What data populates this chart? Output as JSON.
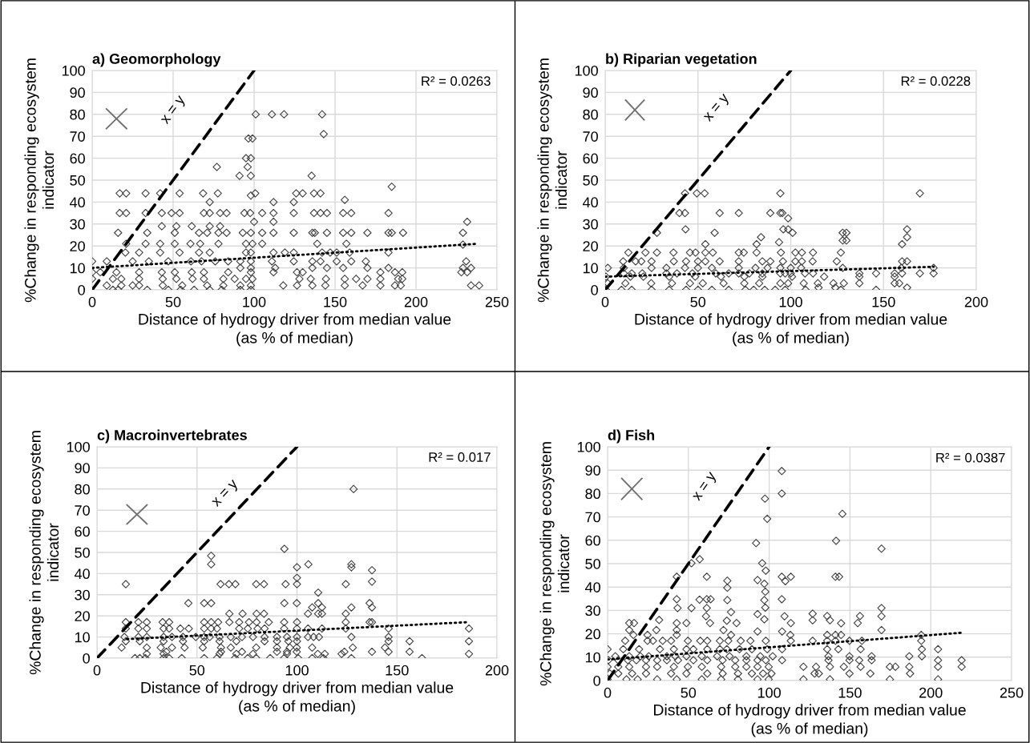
{
  "chart_data": [
    {
      "type": "scatter",
      "title": "a) Geomorphology",
      "xlabel": "Distance of hydrogy driver from median value\n(as % of median)",
      "ylabel": "%Change in responding ecosystem\nindicator",
      "xlim": [
        0,
        250
      ],
      "xticks": [
        0,
        50,
        100,
        150,
        200,
        250
      ],
      "ylim": [
        0,
        100
      ],
      "yticks": [
        0,
        10,
        20,
        30,
        40,
        50,
        60,
        70,
        80,
        90,
        100
      ],
      "grid": true,
      "annotations": [
        "x = y",
        "R² = 0.0263"
      ],
      "series": [
        {
          "marker": "diamond",
          "color": "#404040",
          "x": [
            101,
            111,
            118.5,
            142,
            143,
            96.5,
            99,
            95,
            98,
            77,
            96,
            91,
            98,
            135.5,
            185,
            17,
            21,
            33,
            42,
            54,
            68.5,
            77.6,
            100.7,
            126,
            130,
            137,
            141,
            156,
            98,
            17,
            21,
            33,
            43,
            49,
            54,
            69,
            72.6,
            79,
            83,
            94,
            97.6,
            105,
            112,
            124.5,
            137,
            141,
            145,
            155,
            160,
            183,
            72.6,
            112,
            124.5,
            231.6,
            100,
            112,
            43,
            52,
            61.5,
            72.6,
            79,
            16,
            34,
            51,
            66,
            71,
            78,
            83,
            93,
            98,
            105,
            112,
            124.5,
            136,
            137.5,
            145,
            155,
            160,
            170,
            183,
            185,
            192,
            229,
            21,
            33,
            42,
            51,
            60.7,
            66.7,
            78,
            95,
            99,
            105,
            139,
            157,
            229,
            20.5,
            29,
            42,
            54,
            66,
            72.6,
            95,
            98,
            112,
            119,
            124.5,
            142,
            147,
            151,
            159,
            183,
            0,
            9,
            25,
            35,
            47,
            61,
            67.5,
            76,
            84,
            91.5,
            98,
            111,
            124.5,
            136,
            141,
            151,
            160,
            169,
            231,
            91.5,
            98,
            113,
            136,
            145,
            155,
            170,
            183,
            229,
            234,
            0,
            5,
            15,
            29,
            43,
            51,
            61.5,
            69,
            84,
            98,
            112,
            126.5,
            130,
            178,
            187,
            191.5,
            228,
            231.6,
            0,
            12.8,
            18,
            29,
            43.6,
            52,
            62,
            69,
            81,
            88,
            95,
            99,
            128,
            135,
            144.4,
            156,
            163,
            170,
            178,
            189,
            191.5,
            9,
            18,
            25,
            29,
            43.6,
            55.6,
            71,
            81,
            91.5,
            98,
            118,
            126.5,
            136,
            144,
            156,
            167,
            178,
            187,
            190.6,
            234,
            239,
            12.8,
            16,
            34,
            47,
            54.7,
            63,
            72.6,
            80,
            91.5,
            98
          ],
          "values": [
            80,
            80,
            80,
            80,
            71,
            69,
            69,
            60,
            60,
            56,
            56,
            52,
            52,
            52,
            47,
            44,
            44,
            44,
            44,
            44,
            44,
            44,
            44,
            44,
            44,
            44,
            44,
            41,
            43,
            35,
            35,
            35,
            35,
            35,
            35,
            35,
            35,
            35,
            35,
            35,
            35,
            35,
            35,
            35,
            35,
            35,
            35,
            35,
            35,
            35,
            40,
            40,
            40,
            31,
            31,
            31,
            29,
            29,
            29,
            29,
            29,
            26,
            26,
            26,
            26,
            26,
            26,
            26,
            26,
            26,
            26,
            26,
            26,
            26,
            26,
            26,
            26,
            26,
            26,
            26,
            26,
            26,
            26,
            21,
            21,
            21,
            21,
            21,
            21,
            21,
            21,
            21,
            21,
            21,
            21,
            20.6,
            17,
            17,
            17,
            17,
            17,
            17,
            17,
            17,
            17,
            17,
            17,
            17,
            17,
            17,
            17,
            17,
            13,
            13,
            13,
            13,
            13,
            13,
            13,
            13,
            13,
            13,
            13,
            13,
            13,
            13,
            13,
            13,
            13,
            13,
            13,
            10,
            10,
            10,
            10,
            10,
            10,
            10,
            10,
            10,
            10,
            8,
            8,
            8,
            8,
            8,
            8,
            8,
            8,
            8,
            8,
            8,
            8,
            8,
            8,
            8,
            8,
            8,
            8,
            5,
            5,
            5,
            5,
            5,
            5,
            5,
            5,
            5,
            5,
            5,
            5,
            5,
            5,
            5,
            5,
            5,
            5,
            5,
            5,
            5,
            2,
            2,
            2,
            2,
            2,
            2,
            2,
            2,
            2,
            2,
            2,
            2,
            2,
            2,
            2,
            2,
            2,
            2,
            2,
            2,
            2,
            0,
            0,
            0,
            0,
            0,
            0,
            0,
            0,
            0,
            0
          ]
        },
        {
          "type": "line",
          "line_style": "dashed",
          "color": "#000000",
          "x": [
            0,
            100
          ],
          "values": [
            0,
            100
          ]
        },
        {
          "type": "line",
          "line_style": "dotted",
          "color": "#000000",
          "x": [
            0,
            238
          ],
          "values": [
            10,
            21
          ]
        }
      ]
    },
    {
      "type": "scatter",
      "title": "b) Riparian vegetation",
      "xlabel": "Distance of hydrogy driver from median value\n(as % of median)",
      "ylabel": "%Change in responding ecosystem\nindicator",
      "xlim": [
        0,
        200
      ],
      "xticks": [
        0,
        50,
        100,
        150,
        200
      ],
      "ylim": [
        0,
        100
      ],
      "yticks": [
        0,
        10,
        20,
        30,
        40,
        50,
        60,
        70,
        80,
        90,
        100
      ],
      "grid": true,
      "annotations": [
        "x = y",
        "R² = 0.0228"
      ],
      "series": [
        {
          "marker": "diamond",
          "color": "#404040",
          "x": [
            43,
            49.4,
            53.6,
            94.4,
            169.6,
            40,
            43,
            61.7,
            72,
            89,
            94.4,
            95.5,
            98.6,
            96,
            43.3,
            98.6,
            27.9,
            59,
            101,
            128,
            130,
            162.7,
            84,
            162.7,
            128,
            130,
            160,
            54,
            81.6,
            93.7,
            12.5,
            21.7,
            27.9,
            36.8,
            45.7,
            48.7,
            54,
            58,
            72,
            74.7,
            81.6,
            94.7,
            102.5,
            106,
            112,
            127,
            9.7,
            16.4,
            19.5,
            25,
            37,
            43.6,
            50,
            54,
            61.7,
            72,
            84.7,
            89,
            95.8,
            102.5,
            106,
            111.8,
            124.8,
            160,
            162.7,
            1.4,
            10,
            25,
            33,
            43,
            50,
            57.5,
            72,
            81,
            87.5,
            94.4,
            100,
            105.6,
            128,
            159.6,
            177,
            10,
            14.3,
            20,
            33,
            38.7,
            47,
            59.6,
            66.6,
            72,
            77.7,
            84.7,
            94.4,
            97,
            100,
            107.7,
            112,
            137,
            146,
            156,
            160,
            169.6,
            177,
            0.4,
            13.6,
            20.6,
            34.5,
            48.5,
            62.4,
            75,
            84.7,
            100.7,
            118,
            137,
            156,
            1.4,
            10.9,
            24.8,
            36,
            45.7,
            52.6,
            63.8,
            75,
            83,
            94.4,
            98.6,
            107,
            114.6,
            123,
            128.6,
            137,
            156,
            158.5,
            115,
            124,
            162.7,
            0.4,
            8.8,
            14.3,
            25,
            34.5,
            43.6,
            50,
            57.5,
            66.6,
            75.6,
            80,
            86,
            91.6,
            97,
            108,
            127,
            146
          ],
          "values": [
            44,
            44,
            44,
            44,
            44,
            35,
            35,
            35,
            35,
            35,
            35,
            35,
            32.6,
            27.6,
            27.6,
            27.6,
            26,
            26,
            26,
            26,
            26,
            27.6,
            24,
            24,
            22.5,
            22.5,
            20.8,
            20.8,
            20.8,
            21.7,
            17,
            17,
            17,
            17,
            17,
            17,
            17,
            17,
            17,
            17,
            17,
            17,
            17,
            17,
            17,
            17,
            13,
            13,
            13,
            13,
            13,
            13,
            13,
            13,
            13,
            13,
            13,
            13,
            13,
            13,
            13,
            13,
            13,
            13,
            13,
            10,
            10,
            10,
            10,
            10,
            10,
            10,
            10,
            10,
            10,
            10,
            10,
            10,
            10,
            10,
            10,
            7.5,
            7.5,
            7.5,
            7.5,
            7.5,
            7.5,
            7.5,
            7.5,
            7.5,
            7.5,
            7.5,
            7.5,
            7.5,
            7.5,
            7.5,
            7.5,
            7.5,
            7.5,
            7.5,
            7.5,
            7.5,
            7.5,
            6,
            6,
            6,
            6,
            6,
            6,
            6,
            6,
            6,
            6,
            6,
            6,
            3,
            3,
            3,
            3,
            3,
            3,
            3,
            3,
            3,
            3,
            3,
            3,
            3,
            3,
            3,
            3,
            3,
            3,
            1,
            1,
            1,
            0,
            0,
            0,
            0,
            0,
            0,
            0,
            0,
            0,
            0,
            0,
            0,
            0,
            0,
            0,
            0,
            0
          ]
        },
        {
          "type": "line",
          "line_style": "dashed",
          "color": "#000000",
          "x": [
            0,
            100
          ],
          "values": [
            0,
            100
          ]
        },
        {
          "type": "line",
          "line_style": "dotted",
          "color": "#000000",
          "x": [
            0,
            177
          ],
          "values": [
            6,
            10.5
          ]
        }
      ]
    },
    {
      "type": "scatter",
      "title": "c) Macroinvertebrates",
      "xlabel": "Distance of hydrogy driver from median value\n(as % of median)",
      "ylabel": "%Change in responding ecosystem\nindicator",
      "xlim": [
        0,
        200
      ],
      "xticks": [
        0,
        50,
        100,
        150,
        200
      ],
      "ylim": [
        0,
        100
      ],
      "yticks": [
        0,
        10,
        20,
        30,
        40,
        50,
        60,
        70,
        80,
        90,
        100
      ],
      "grid": true,
      "annotations": [
        "x = y",
        "R² = 0.017"
      ],
      "series": [
        {
          "marker": "diamond",
          "color": "#404040",
          "x": [
            128.3,
            93.7,
            57.1,
            57.1,
            105.7,
            100,
            127.2,
            127.2,
            137.5,
            14.4,
            61.8,
            66,
            69.2,
            79.6,
            83.5,
            94.3,
            100,
            124.4,
            137.5,
            100,
            110.6,
            45.7,
            53.6,
            57.1,
            93.7,
            99.9,
            110.6,
            136.3,
            107.6,
            112.5,
            127.2,
            137.5,
            66.2,
            72.8,
            79.8,
            83.5,
            105.5,
            110.6,
            112.5,
            124.4,
            14.4,
            20.7,
            24.9,
            32.8,
            36.1,
            53.6,
            57.1,
            60.6,
            66.2,
            71.1,
            76,
            79.8,
            85.9,
            93.6,
            100,
            124.4,
            136.3,
            137.5,
            14.4,
            20.7,
            24.9,
            33.3,
            36.1,
            41.7,
            45.9,
            53.6,
            57.1,
            60,
            71.1,
            75.4,
            80.3,
            83.8,
            93.6,
            100,
            105.5,
            112.5,
            124.4,
            145.8,
            186,
            13.7,
            20.7,
            24.9,
            33.3,
            37.5,
            43,
            49.4,
            53.6,
            56.4,
            61.3,
            66.9,
            72.5,
            78,
            83.8,
            90,
            95,
            100,
            105.5,
            108.3,
            111,
            127.2,
            145.8,
            14.4,
            21.4,
            33.3,
            43,
            53.6,
            61.3,
            69.7,
            83.8,
            90,
            95.7,
            100,
            145.8,
            156.3,
            186,
            12.3,
            24.9,
            31.9,
            37.5,
            43.8,
            52.9,
            62,
            66.9,
            79.6,
            90,
            96.4,
            99.9,
            107.6,
            127.9,
            144,
            34.7,
            62,
            72.5,
            90,
            95,
            99.9,
            123.7,
            137.5,
            145.8,
            156.3,
            24.9,
            33.3,
            61.3,
            69.7,
            78,
            95,
            110.4,
            113.9,
            122.3,
            186,
            19,
            21.4,
            24.2,
            33.3,
            36.1,
            42.4,
            53.6,
            60,
            69,
            75.4,
            79.6,
            86.6,
            93.6,
            100.6,
            107.6,
            113.2,
            127.2,
            162.5
          ],
          "values": [
            80,
            51.7,
            48.4,
            44.4,
            44.4,
            43,
            44.4,
            43,
            41.6,
            35,
            35,
            35,
            35,
            35,
            35,
            35,
            35,
            35,
            36.2,
            38,
            31,
            26,
            26,
            26,
            26,
            26,
            26,
            26,
            24,
            24,
            24,
            24,
            21,
            21,
            21,
            21,
            21,
            21,
            21,
            21,
            17,
            17,
            17,
            17,
            17,
            17,
            17,
            17,
            17,
            17,
            17,
            17,
            17,
            17,
            17,
            17,
            17,
            17,
            14,
            14,
            14,
            14,
            14,
            14,
            14,
            14,
            14,
            14,
            14,
            14,
            14,
            14,
            14,
            14,
            14,
            14,
            14,
            14,
            14,
            10,
            10,
            10,
            10,
            10,
            10,
            10,
            10,
            10,
            10,
            10,
            10,
            10,
            10,
            10,
            10,
            10,
            10,
            10,
            10,
            10,
            10,
            8,
            8,
            8,
            8,
            8,
            8,
            8,
            8,
            8,
            8,
            8,
            8,
            8,
            8,
            5,
            5,
            5,
            5,
            5,
            5,
            5,
            5,
            5,
            5,
            5,
            5,
            5,
            5,
            5,
            3,
            3,
            3,
            3,
            3,
            3,
            3,
            3,
            3,
            3,
            2,
            2,
            2,
            2,
            2,
            2,
            2,
            2,
            2,
            2,
            0,
            0,
            0,
            0,
            0,
            0,
            0,
            0,
            0,
            0,
            0,
            0,
            0,
            0,
            0,
            0,
            0,
            0
          ]
        },
        {
          "type": "line",
          "line_style": "dashed",
          "color": "#000000",
          "x": [
            0,
            100
          ],
          "values": [
            0,
            100
          ]
        },
        {
          "type": "line",
          "line_style": "dotted",
          "color": "#000000",
          "x": [
            15,
            185
          ],
          "values": [
            9,
            17
          ]
        }
      ]
    },
    {
      "type": "scatter",
      "title": "d) Fish",
      "xlabel": "Distance of hydrogy driver from median value\n(as % of median)",
      "ylabel": "%Change in responding ecosystem\nindicator",
      "xlim": [
        0,
        250
      ],
      "xticks": [
        0,
        50,
        100,
        150,
        200,
        250
      ],
      "ylim": [
        0,
        100
      ],
      "yticks": [
        0,
        10,
        20,
        30,
        40,
        50,
        60,
        70,
        80,
        90,
        100
      ],
      "grid": true,
      "annotations": [
        "x = y",
        "R² = 0.0387"
      ],
      "series": [
        {
          "marker": "diamond",
          "color": "#404040",
          "x": [
            107.8,
            107.8,
            97.4,
            98.8,
            145.3,
            141.4,
            91.9,
            169.5,
            51.9,
            57,
            95.7,
            97.9,
            42.8,
            61.4,
            107.8,
            113.4,
            141,
            143.3,
            74.1,
            74.1,
            92.8,
            97,
            97.6,
            110,
            42.8,
            56.9,
            61.4,
            63.8,
            74.1,
            107.8,
            97,
            43.3,
            51.9,
            61.4,
            169.5,
            97.6,
            76.4,
            92.8,
            97,
            126.9,
            135.9,
            156.2,
            169.5,
            60.9,
            109.5,
            126.9,
            137.6,
            154.8,
            144.5,
            31.9,
            13.4,
            16.4,
            48.8,
            63.4,
            79.8,
            113.4,
            42.8,
            73.8,
            169.5,
            30.2,
            13.4,
            42.8,
            71.7,
            92.8,
            108,
            16,
            24.7,
            42.8,
            76.4,
            113.1,
            135.9,
            141,
            144.5,
            194.1,
            10.9,
            24.7,
            28.1,
            34.1,
            39.3,
            49.7,
            57.4,
            61.7,
            69.5,
            74.7,
            82.4,
            88.4,
            97.9,
            113.4,
            126.9,
            135.9,
            141,
            149.7,
            157.4,
            194.1,
            0,
            9.7,
            19.5,
            32.4,
            41,
            48.8,
            53.1,
            61.7,
            69.5,
            73.8,
            81.6,
            89.3,
            98.8,
            108,
            135.9,
            142.8,
            156.6,
            194.5,
            204.5,
            4.8,
            13.4,
            20.3,
            25.5,
            36.7,
            41.9,
            48.8,
            58.3,
            67.8,
            75.5,
            85.9,
            94.5,
            102.2,
            136.7,
            149.7,
            163.4,
            186.7,
            194.5,
            0.5,
            6.6,
            12.6,
            17.8,
            23.8,
            30.7,
            36.7,
            43.6,
            53.1,
            61.7,
            71.2,
            79,
            85.9,
            92.8,
            97.9,
            108,
            136.7,
            149.7,
            155.7,
            163.4,
            204.5,
            219.1,
            0,
            6.6,
            13.4,
            23.8,
            30.7,
            41,
            49.7,
            58.3,
            70.3,
            79,
            85.9,
            92.8,
            99.7,
            121.2,
            129,
            137.6,
            146.2,
            156.6,
            174.7,
            178.1,
            186.7,
            204.5,
            219.1,
            1.4,
            6.6,
            15.2,
            23.8,
            39.3,
            48.8,
            61.7,
            71.2,
            80.7,
            89.3,
            96.2,
            101.4,
            128.1,
            130.7,
            149.7,
            162.6,
            187.2,
            0,
            11.7,
            18.6,
            30.7,
            42.8,
            58.3,
            70.3,
            80.7,
            92.8,
            99.7,
            121.2,
            137.6,
            174.7,
            204.5
          ],
          "values": [
            89.6,
            80,
            77.8,
            69.2,
            71.3,
            59.8,
            58.8,
            56.4,
            50.2,
            51.9,
            50.2,
            47,
            44.4,
            44.4,
            44.4,
            44.4,
            44.4,
            44.4,
            42.7,
            39.7,
            43,
            41.4,
            38,
            42.5,
            34.8,
            34.6,
            34.8,
            34.8,
            34.4,
            34.8,
            34.4,
            31,
            31,
            31,
            31,
            31.2,
            29.3,
            28.4,
            26.2,
            28.6,
            27.6,
            27.6,
            27.5,
            27.5,
            27.5,
            25.8,
            25.8,
            24.6,
            24.5,
            25.9,
            24.6,
            24.6,
            24.6,
            24.6,
            24.6,
            24.6,
            24.6,
            25.6,
            21.6,
            21.6,
            21.6,
            21.6,
            21.6,
            21,
            21,
            19.5,
            19.5,
            19.5,
            19.5,
            19.5,
            19.5,
            19.5,
            19.5,
            19.5,
            17,
            17,
            17,
            17,
            17,
            17,
            17,
            17,
            17,
            17,
            17,
            17,
            17,
            17,
            17,
            17,
            17,
            17,
            17,
            17,
            13.4,
            13.4,
            13.4,
            13.4,
            13.4,
            13.4,
            13.4,
            13.4,
            13.4,
            13.4,
            13.4,
            13.4,
            13.4,
            13.4,
            13.4,
            13.4,
            13.4,
            13.4,
            13.4,
            10.4,
            10.4,
            10.4,
            10.4,
            10.4,
            10.4,
            10.4,
            10.4,
            10.4,
            10.4,
            10.4,
            10.4,
            10.4,
            10.4,
            10.4,
            10.4,
            10.4,
            10.4,
            8.7,
            8.7,
            8.7,
            8.7,
            8.7,
            8.7,
            8.7,
            8.7,
            8.7,
            8.7,
            8.7,
            8.7,
            8.7,
            8.7,
            8.7,
            8.7,
            8.7,
            8.7,
            8.7,
            8.7,
            8.7,
            8.7,
            5.9,
            5.9,
            5.9,
            5.9,
            5.9,
            5.9,
            5.9,
            5.9,
            5.9,
            5.9,
            5.9,
            5.9,
            5.9,
            5.9,
            5.9,
            5.9,
            5.9,
            5.9,
            5.9,
            5.9,
            5.9,
            5.9,
            5.9,
            3,
            3,
            3,
            3,
            3,
            3,
            3,
            3,
            3,
            3,
            3,
            3,
            3,
            3,
            3,
            3,
            3,
            0.5,
            0.5,
            0.5,
            0.5,
            0.5,
            0.5,
            0.5,
            0.5,
            0.5,
            0.5,
            0.5,
            0.5,
            0.5,
            0.5
          ]
        },
        {
          "type": "line",
          "line_style": "dashed",
          "color": "#000000",
          "x": [
            0,
            100
          ],
          "values": [
            0,
            100
          ]
        },
        {
          "type": "line",
          "line_style": "dotted",
          "color": "#000000",
          "x": [
            0,
            220
          ],
          "values": [
            9,
            20.5
          ]
        }
      ]
    }
  ]
}
